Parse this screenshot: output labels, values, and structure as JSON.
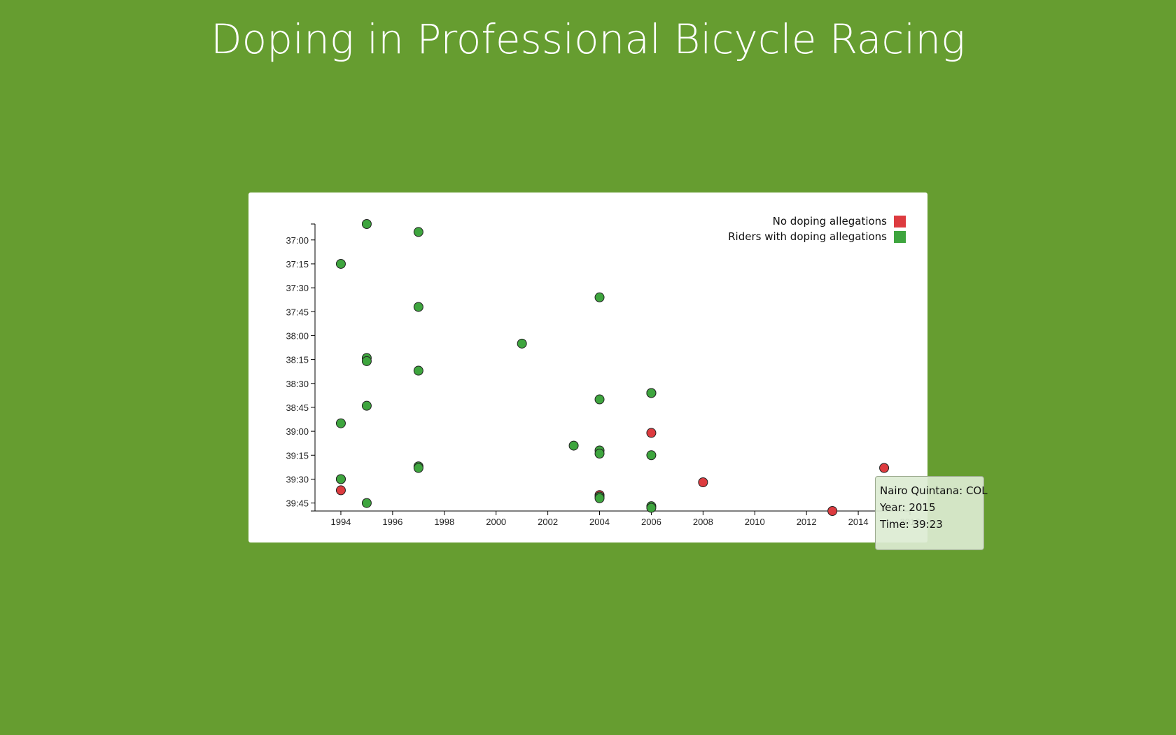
{
  "page": {
    "title": "Doping in Professional Bicycle Racing",
    "background_color": "#669d30"
  },
  "tooltip": {
    "name_line": "Nairo Quintana: COL",
    "year_line": "Year: 2015",
    "time_line": "Time: 39:23"
  },
  "chart_data": {
    "type": "scatter",
    "title": "Doping in Professional Bicycle Racing",
    "xlabel": "",
    "ylabel": "",
    "xlim": [
      1993,
      2016
    ],
    "ylim_seconds": [
      2210,
      2390
    ],
    "x_ticks": [
      1994,
      1996,
      1998,
      2000,
      2002,
      2004,
      2006,
      2008,
      2010,
      2012,
      2014,
      2016
    ],
    "y_ticks": [
      "37:00",
      "37:15",
      "37:30",
      "37:45",
      "38:00",
      "38:15",
      "38:30",
      "38:45",
      "39:00",
      "39:15",
      "39:30",
      "39:45"
    ],
    "y_axis_reversed": true,
    "grid": false,
    "legend_position": "top-right",
    "legend": [
      {
        "label": "No doping allegations",
        "color": "#dd3b3f"
      },
      {
        "label": "Riders with doping allegations",
        "color": "#3ea53e"
      }
    ],
    "colors": {
      "no_doping": "#dd3b3f",
      "doping": "#3ea53e"
    },
    "points": [
      {
        "year": 1995,
        "time": "36:50",
        "doping": true
      },
      {
        "year": 1997,
        "time": "36:55",
        "doping": true
      },
      {
        "year": 1994,
        "time": "37:15",
        "doping": true
      },
      {
        "year": 2004,
        "time": "37:36",
        "doping": true
      },
      {
        "year": 1997,
        "time": "37:42",
        "doping": true
      },
      {
        "year": 2001,
        "time": "38:05",
        "doping": true
      },
      {
        "year": 1995,
        "time": "38:14",
        "doping": true
      },
      {
        "year": 1995,
        "time": "38:16",
        "doping": true
      },
      {
        "year": 1997,
        "time": "38:22",
        "doping": true
      },
      {
        "year": 2006,
        "time": "38:36",
        "doping": true
      },
      {
        "year": 2006,
        "time": "38:36",
        "doping": true
      },
      {
        "year": 2004,
        "time": "38:40",
        "doping": true
      },
      {
        "year": 1995,
        "time": "38:44",
        "doping": true
      },
      {
        "year": 1994,
        "time": "38:55",
        "doping": true
      },
      {
        "year": 2006,
        "time": "39:01",
        "doping": false
      },
      {
        "year": 2003,
        "time": "39:09",
        "doping": true
      },
      {
        "year": 2004,
        "time": "39:12",
        "doping": true
      },
      {
        "year": 2004,
        "time": "39:14",
        "doping": true
      },
      {
        "year": 2006,
        "time": "39:15",
        "doping": true
      },
      {
        "year": 1997,
        "time": "39:22",
        "doping": true
      },
      {
        "year": 1997,
        "time": "39:23",
        "doping": true
      },
      {
        "year": 2015,
        "time": "39:23",
        "doping": false
      },
      {
        "year": 1994,
        "time": "39:30",
        "doping": true
      },
      {
        "year": 1994,
        "time": "39:30",
        "doping": true
      },
      {
        "year": 2008,
        "time": "39:32",
        "doping": false
      },
      {
        "year": 1994,
        "time": "39:37",
        "doping": false
      },
      {
        "year": 2004,
        "time": "39:40",
        "doping": false
      },
      {
        "year": 2004,
        "time": "39:41",
        "doping": true
      },
      {
        "year": 2004,
        "time": "39:42",
        "doping": true
      },
      {
        "year": 1995,
        "time": "39:45",
        "doping": true
      },
      {
        "year": 2006,
        "time": "39:47",
        "doping": true
      },
      {
        "year": 2006,
        "time": "39:48",
        "doping": true
      },
      {
        "year": 2013,
        "time": "39:50",
        "doping": false
      }
    ]
  }
}
